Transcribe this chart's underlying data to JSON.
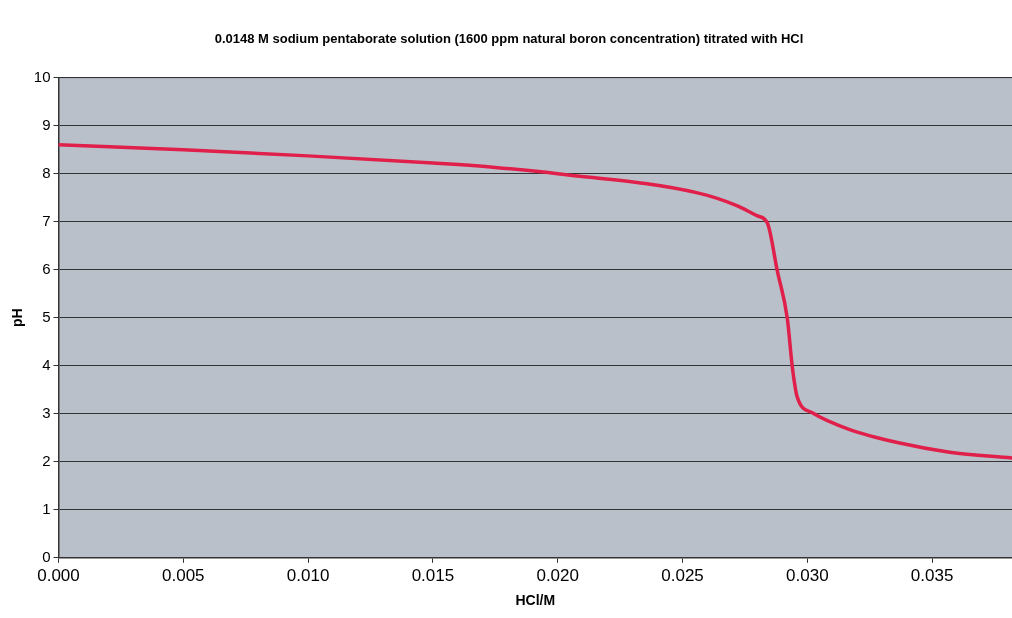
{
  "chart_data": {
    "type": "line",
    "title": "0.0148 M sodium pentaborate solution (1600 ppm natural boron concentration) titrated with HCl",
    "xlabel": "HCl/M",
    "ylabel": "pH",
    "x": [
      0,
      0.005,
      0.01,
      0.015,
      0.0175,
      0.02,
      0.0256,
      0.0272,
      0.028,
      0.0284,
      0.0288,
      0.0292,
      0.0294,
      0.0296,
      0.0302,
      0.0317,
      0.0337,
      0.0357,
      0.0382
    ],
    "series": [
      {
        "color": "#e0204a",
        "values": [
          8.6,
          8.5,
          8.37,
          8.22,
          8.13,
          8.0,
          7.6,
          7.33,
          7.12,
          6.97,
          5.97,
          4.98,
          3.97,
          3.34,
          3.02,
          2.67,
          2.39,
          2.2,
          2.08
        ]
      }
    ],
    "xlim": [
      0,
      0.0382
    ],
    "xticks": [
      {
        "value": 0,
        "label": "0.000"
      },
      {
        "value": 0.005,
        "label": "0.005"
      },
      {
        "value": 0.01,
        "label": "0.010"
      },
      {
        "value": 0.015,
        "label": "0.015"
      },
      {
        "value": 0.02,
        "label": "0.020"
      },
      {
        "value": 0.025,
        "label": "0.025"
      },
      {
        "value": 0.03,
        "label": "0.030"
      },
      {
        "value": 0.035,
        "label": "0.035"
      }
    ],
    "ylim": [
      0,
      10
    ],
    "yticks": [
      0,
      1,
      2,
      3,
      4,
      5,
      6,
      7,
      8,
      9,
      10
    ],
    "grid": "y",
    "legend": false,
    "marker": "none",
    "line_style": "solid"
  }
}
